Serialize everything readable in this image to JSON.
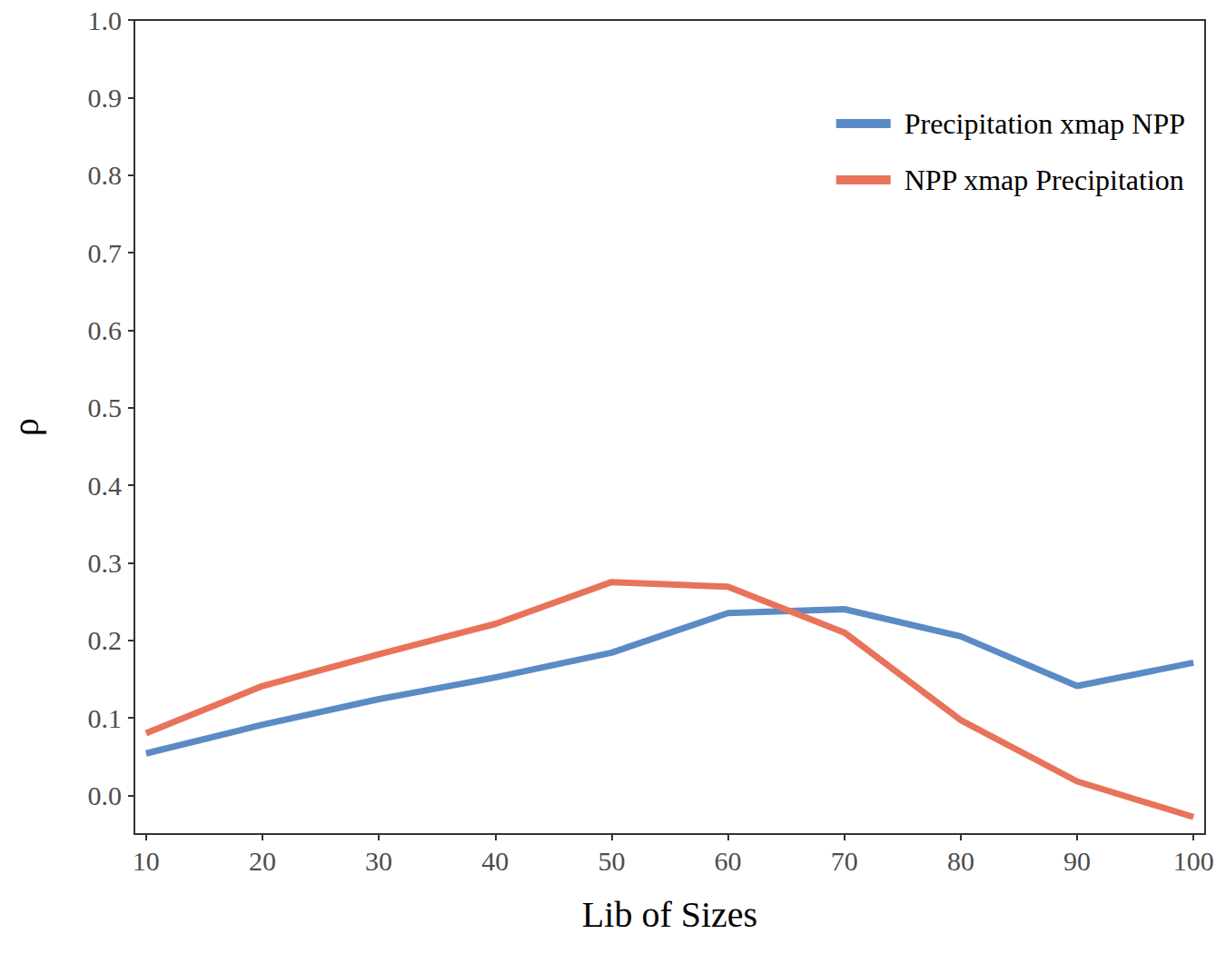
{
  "chart_data": {
    "type": "line",
    "x_label": "Lib of Sizes",
    "y_label": "ρ",
    "x": [
      10,
      20,
      30,
      40,
      50,
      60,
      70,
      80,
      90,
      100
    ],
    "series": [
      {
        "name": "Precipitation xmap NPP",
        "color": "#5b8bc5",
        "values": [
          0.054,
          0.091,
          0.124,
          0.152,
          0.184,
          0.235,
          0.24,
          0.205,
          0.141,
          0.171
        ]
      },
      {
        "name": "NPP xmap Precipitation",
        "color": "#e8735a",
        "values": [
          0.08,
          0.141,
          0.182,
          0.221,
          0.275,
          0.269,
          0.21,
          0.097,
          0.018,
          -0.028
        ]
      }
    ],
    "xlim": [
      9,
      101
    ],
    "xticks": [
      10,
      20,
      30,
      40,
      50,
      60,
      70,
      80,
      90,
      100
    ],
    "ylim": [
      -0.05,
      1.0
    ],
    "yticks": [
      {
        "value": 0,
        "label": "0.0"
      },
      0.1,
      0.2,
      0.3,
      0.4,
      0.5,
      0.6,
      0.7,
      0.8,
      0.9,
      {
        "value": 1,
        "label": "1.0"
      }
    ],
    "grid": false,
    "legend": "top-right"
  }
}
